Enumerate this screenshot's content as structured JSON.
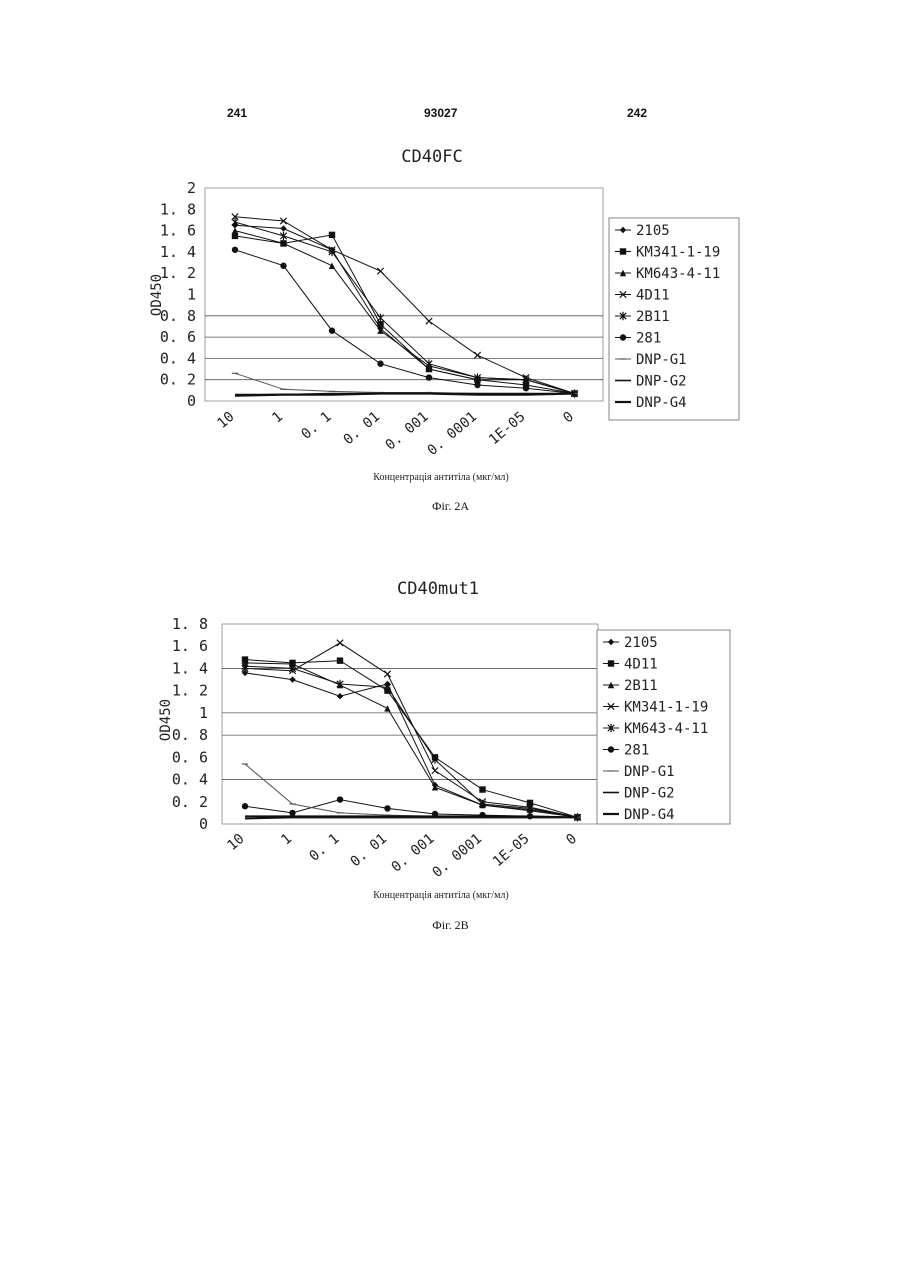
{
  "header": {
    "left": "241",
    "center": "93027",
    "right": "242"
  },
  "figures": [
    {
      "caption": "Фіг. 2А"
    },
    {
      "caption": "Фіг. 2В"
    }
  ],
  "chart_data": [
    {
      "type": "line",
      "title": "CD40FC",
      "xlabel": "Концентрація антитіла (мкг/мл)",
      "ylabel": "OD450",
      "categories": [
        "10",
        "1",
        "0.1",
        "0.01",
        "0.001",
        "0.0001",
        "1E-05",
        "0"
      ],
      "ylim": [
        0,
        2
      ],
      "yticks": [
        "0",
        "0.2",
        "0.4",
        "0.6",
        "0.8",
        "1",
        "1.2",
        "1.4",
        "1.6",
        "1.8",
        "2"
      ],
      "legend_position": "right",
      "series": [
        {
          "name": "2105",
          "marker": "diamond",
          "x": [
            "10",
            "1",
            "0.1",
            "0.01",
            "0.001",
            "0.0001",
            "1E-05",
            "0"
          ],
          "values": [
            1.65,
            1.62,
            1.42,
            0.68,
            0.3,
            0.2,
            0.2,
            0.07
          ]
        },
        {
          "name": "KM341-1-19",
          "marker": "square",
          "x": [
            "10",
            "1",
            "0.1",
            "0.01",
            "0.001",
            "0.0001",
            "1E-05",
            "0"
          ],
          "values": [
            1.55,
            1.48,
            1.56,
            0.72,
            0.3,
            0.2,
            0.15,
            0.07
          ]
        },
        {
          "name": "KM643-4-11",
          "marker": "triangle",
          "x": [
            "10",
            "1",
            "0.1",
            "0.01",
            "0.001",
            "0.0001",
            "1E-05",
            "0"
          ],
          "values": [
            1.6,
            1.48,
            1.27,
            0.66,
            0.33,
            0.22,
            0.2,
            0.07
          ]
        },
        {
          "name": "4D11",
          "marker": "x",
          "x": [
            "10",
            "1",
            "0.1",
            "0.01",
            "0.001",
            "0.0001",
            "1E-05",
            "0"
          ],
          "values": [
            1.73,
            1.69,
            1.42,
            1.22,
            0.75,
            0.43,
            0.22,
            0.07
          ]
        },
        {
          "name": "2B11",
          "marker": "star",
          "x": [
            "10",
            "1",
            "0.1",
            "0.01",
            "0.001",
            "0.0001",
            "1E-05",
            "0"
          ],
          "values": [
            1.68,
            1.55,
            1.4,
            0.78,
            0.35,
            0.22,
            0.2,
            0.07
          ]
        },
        {
          "name": "281",
          "marker": "circle",
          "x": [
            "10",
            "1",
            "0.1",
            "0.01",
            "0.001",
            "0.0001",
            "1E-05",
            "0"
          ],
          "values": [
            1.42,
            1.27,
            0.66,
            0.35,
            0.22,
            0.15,
            0.12,
            0.07
          ]
        },
        {
          "name": "DNP-G1",
          "marker": "dash",
          "x": [
            "10",
            "1",
            "0.1",
            "0.01",
            "0.001",
            "0.0001",
            "1E-05",
            "0"
          ],
          "values": [
            0.26,
            0.11,
            0.09,
            0.08,
            0.08,
            0.07,
            0.07,
            0.07
          ]
        },
        {
          "name": "DNP-G2",
          "marker": "none",
          "x": [
            "10",
            "1",
            "0.1",
            "0.01",
            "0.001",
            "0.0001",
            "1E-05",
            "0"
          ],
          "values": [
            0.06,
            0.06,
            0.07,
            0.07,
            0.07,
            0.07,
            0.07,
            0.07
          ]
        },
        {
          "name": "DNP-G4",
          "marker": "none",
          "x": [
            "10",
            "1",
            "0.1",
            "0.01",
            "0.001",
            "0.0001",
            "1E-05",
            "0"
          ],
          "values": [
            0.05,
            0.06,
            0.06,
            0.07,
            0.07,
            0.06,
            0.06,
            0.07
          ]
        }
      ]
    },
    {
      "type": "line",
      "title": "CD40mut1",
      "xlabel": "Концентрація антитіла (мкг/мл)",
      "ylabel": "OD450",
      "categories": [
        "10",
        "1",
        "0.1",
        "0.01",
        "0.001",
        "0.0001",
        "1E-05",
        "0"
      ],
      "ylim": [
        0,
        1.8
      ],
      "yticks": [
        "0",
        "0.2",
        "0.4",
        "0.6",
        "0.8",
        "1",
        "1.2",
        "1.4",
        "1.6",
        "1.8"
      ],
      "legend_position": "right",
      "series": [
        {
          "name": "2105",
          "marker": "diamond",
          "x": [
            "10",
            "1",
            "0.1",
            "0.01",
            "0.001",
            "0.0001",
            "1E-05",
            "0"
          ],
          "values": [
            1.36,
            1.3,
            1.15,
            1.26,
            0.35,
            0.17,
            0.12,
            0.06
          ]
        },
        {
          "name": "4D11",
          "marker": "square",
          "x": [
            "10",
            "1",
            "0.1",
            "0.01",
            "0.001",
            "0.0001",
            "1E-05",
            "0"
          ],
          "values": [
            1.48,
            1.45,
            1.47,
            1.2,
            0.6,
            0.31,
            0.19,
            0.06
          ]
        },
        {
          "name": "2B11",
          "marker": "triangle",
          "x": [
            "10",
            "1",
            "0.1",
            "0.01",
            "0.001",
            "0.0001",
            "1E-05",
            "0"
          ],
          "values": [
            1.45,
            1.44,
            1.25,
            1.04,
            0.33,
            0.17,
            0.13,
            0.06
          ]
        },
        {
          "name": "KM341-1-19",
          "marker": "x",
          "x": [
            "10",
            "1",
            "0.1",
            "0.01",
            "0.001",
            "0.0001",
            "1E-05",
            "0"
          ],
          "values": [
            1.4,
            1.38,
            1.63,
            1.35,
            0.48,
            0.2,
            0.15,
            0.06
          ]
        },
        {
          "name": "KM643-4-11",
          "marker": "star",
          "x": [
            "10",
            "1",
            "0.1",
            "0.01",
            "0.001",
            "0.0001",
            "1E-05",
            "0"
          ],
          "values": [
            1.42,
            1.4,
            1.26,
            1.23,
            0.58,
            0.18,
            0.14,
            0.06
          ]
        },
        {
          "name": "281",
          "marker": "circle",
          "x": [
            "10",
            "1",
            "0.1",
            "0.01",
            "0.001",
            "0.0001",
            "1E-05",
            "0"
          ],
          "values": [
            0.16,
            0.1,
            0.22,
            0.14,
            0.09,
            0.08,
            0.07,
            0.06
          ]
        },
        {
          "name": "DNP-G1",
          "marker": "dash",
          "x": [
            "10",
            "1",
            "0.1",
            "0.01",
            "0.001",
            "0.0001",
            "1E-05",
            "0"
          ],
          "values": [
            0.54,
            0.18,
            0.1,
            0.08,
            0.07,
            0.07,
            0.07,
            0.06
          ]
        },
        {
          "name": "DNP-G2",
          "marker": "none",
          "x": [
            "10",
            "1",
            "0.1",
            "0.01",
            "0.001",
            "0.0001",
            "1E-05",
            "0"
          ],
          "values": [
            0.07,
            0.07,
            0.07,
            0.07,
            0.07,
            0.07,
            0.07,
            0.06
          ]
        },
        {
          "name": "DNP-G4",
          "marker": "none",
          "x": [
            "10",
            "1",
            "0.1",
            "0.01",
            "0.001",
            "0.0001",
            "1E-05",
            "0"
          ],
          "values": [
            0.05,
            0.06,
            0.06,
            0.06,
            0.06,
            0.06,
            0.06,
            0.06
          ]
        }
      ]
    }
  ]
}
